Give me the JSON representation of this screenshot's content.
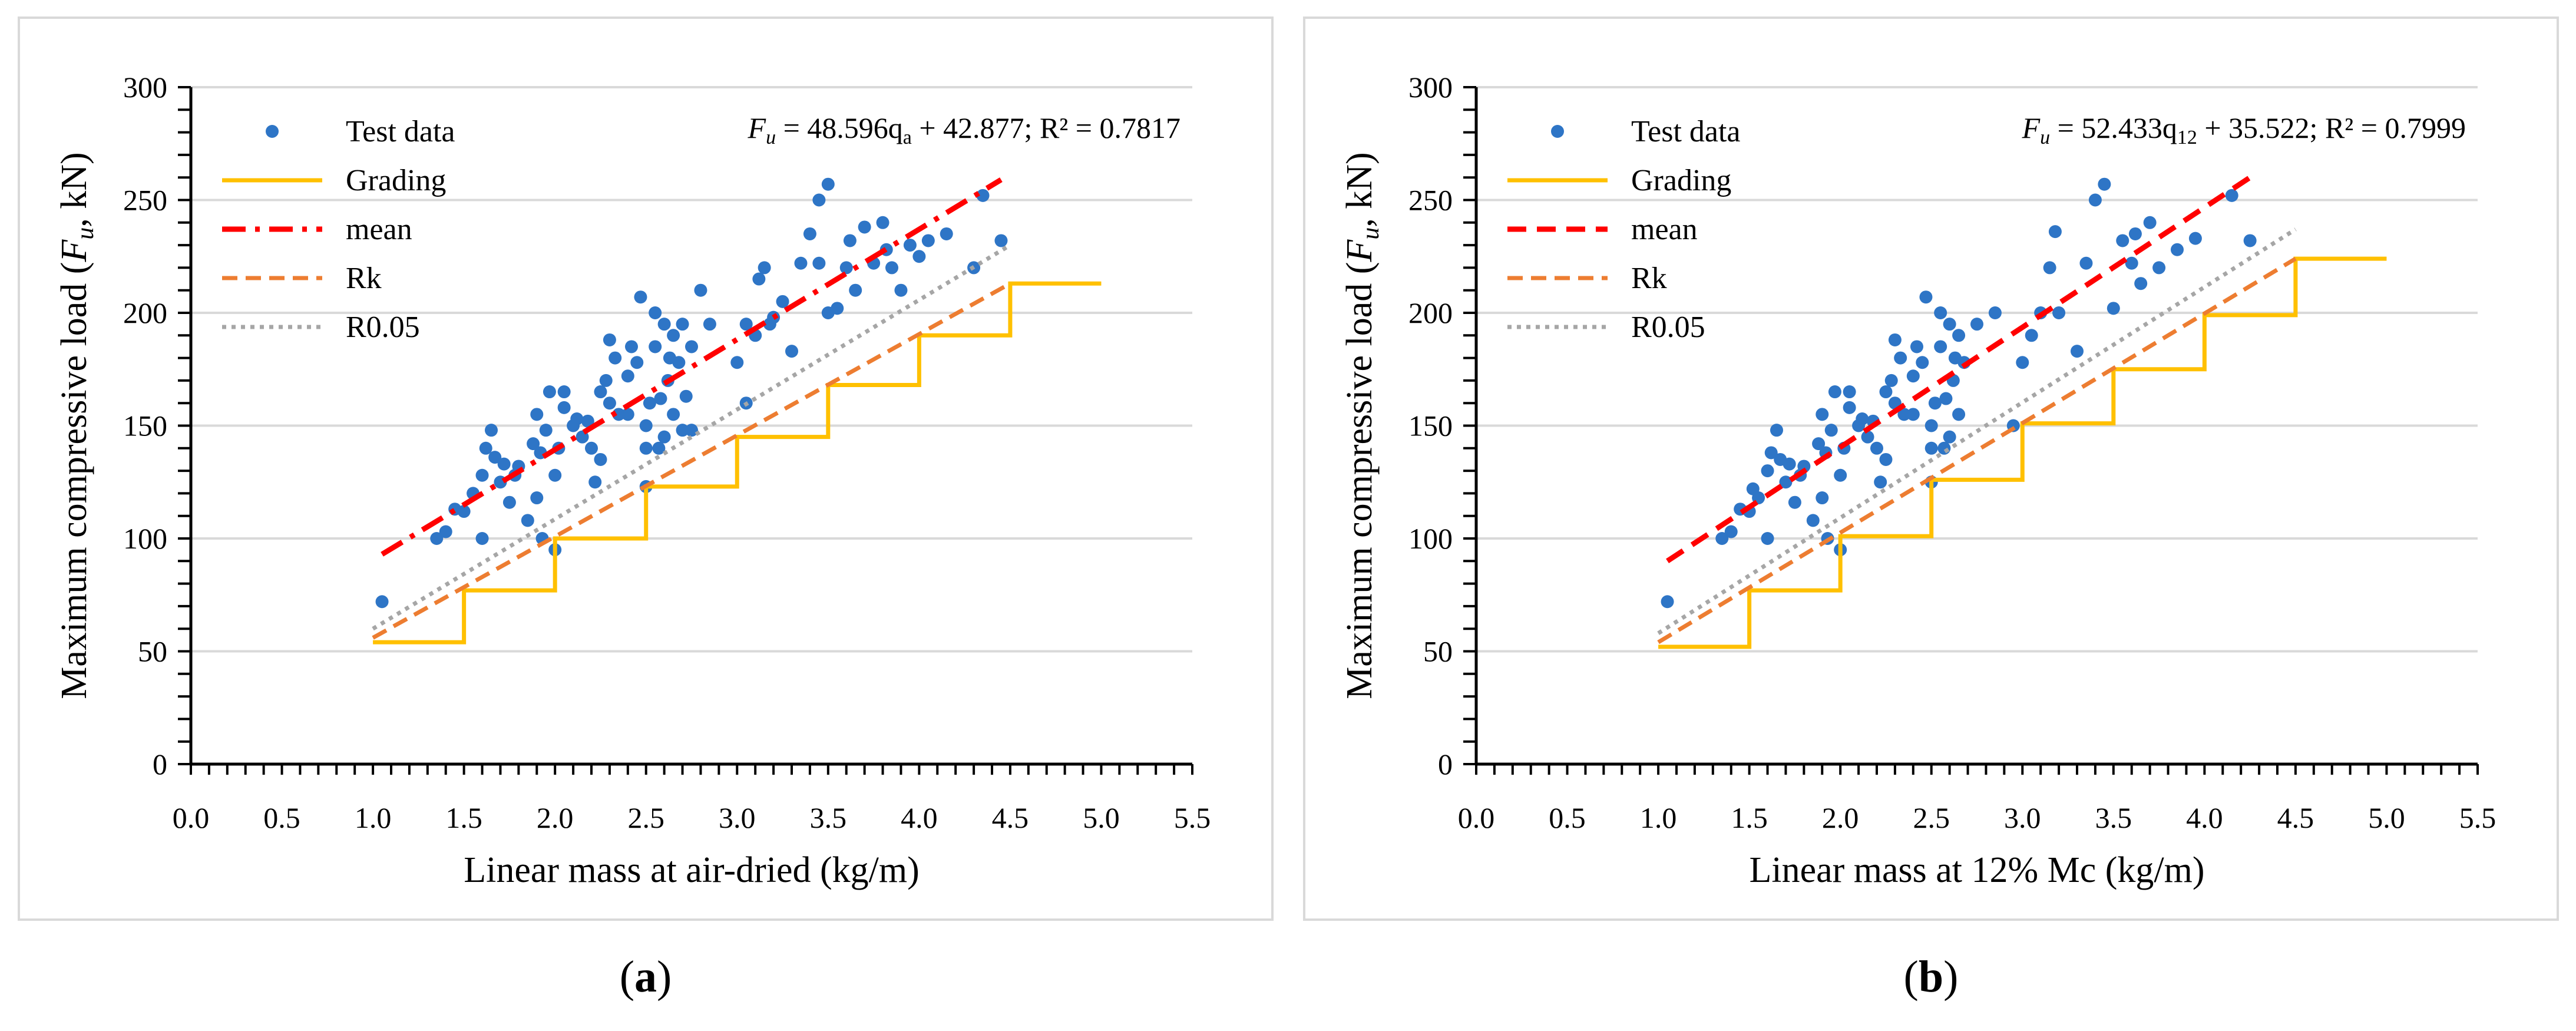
{
  "colors": {
    "test_data": "#2E75C6",
    "grading": "#FFC000",
    "mean": "#FF0000",
    "rk": "#ED7D31",
    "r005": "#A6A6A6",
    "grid": "#D9D9D9",
    "axis": "#000000"
  },
  "captions": {
    "a": "a",
    "b": "b"
  },
  "chart_data": [
    {
      "id": "a",
      "type": "scatter",
      "title": "",
      "xlabel": "Linear mass at air-dried (kg/m)",
      "ylabel_prefix": "Maximum compressive load (",
      "ylabel_var": "F",
      "ylabel_sub": "u",
      "ylabel_suffix": ", kN)",
      "xlim": [
        0,
        5.5
      ],
      "ylim": [
        0,
        300
      ],
      "xticks": [
        "0.0",
        "0.5",
        "1.0",
        "1.5",
        "2.0",
        "2.5",
        "3.0",
        "3.5",
        "4.0",
        "4.5",
        "5.0",
        "5.5"
      ],
      "yticks": [
        "0",
        "50",
        "100",
        "150",
        "200",
        "250",
        "300"
      ],
      "equation": {
        "var": "F",
        "sub": "u",
        "rest": " = 48.596q",
        "qsub": "a",
        "tail": " + 42.877; R² = 0.7817"
      },
      "legend": [
        "Test data",
        "Grading",
        "mean",
        "Rk",
        "R0.05"
      ],
      "mean_style": "dashdot",
      "series": [
        {
          "name": "Test data",
          "type": "scatter",
          "points": [
            [
              1.05,
              72
            ],
            [
              1.35,
              100
            ],
            [
              1.4,
              103
            ],
            [
              1.45,
              113
            ],
            [
              1.5,
              112
            ],
            [
              1.55,
              120
            ],
            [
              1.6,
              100
            ],
            [
              1.6,
              128
            ],
            [
              1.62,
              140
            ],
            [
              1.65,
              148
            ],
            [
              1.67,
              136
            ],
            [
              1.7,
              125
            ],
            [
              1.72,
              133
            ],
            [
              1.75,
              116
            ],
            [
              1.78,
              128
            ],
            [
              1.8,
              132
            ],
            [
              1.85,
              108
            ],
            [
              1.88,
              142
            ],
            [
              1.9,
              155
            ],
            [
              1.9,
              118
            ],
            [
              1.92,
              138
            ],
            [
              1.93,
              100
            ],
            [
              1.95,
              148
            ],
            [
              1.97,
              165
            ],
            [
              2.0,
              95
            ],
            [
              2.0,
              128
            ],
            [
              2.02,
              140
            ],
            [
              2.05,
              158
            ],
            [
              2.05,
              165
            ],
            [
              2.1,
              150
            ],
            [
              2.12,
              153
            ],
            [
              2.15,
              145
            ],
            [
              2.18,
              152
            ],
            [
              2.2,
              140
            ],
            [
              2.22,
              125
            ],
            [
              2.25,
              165
            ],
            [
              2.25,
              135
            ],
            [
              2.28,
              170
            ],
            [
              2.3,
              160
            ],
            [
              2.3,
              188
            ],
            [
              2.33,
              180
            ],
            [
              2.35,
              155
            ],
            [
              2.4,
              155
            ],
            [
              2.4,
              172
            ],
            [
              2.42,
              185
            ],
            [
              2.45,
              178
            ],
            [
              2.47,
              207
            ],
            [
              2.5,
              123
            ],
            [
              2.5,
              140
            ],
            [
              2.5,
              150
            ],
            [
              2.52,
              160
            ],
            [
              2.55,
              185
            ],
            [
              2.55,
              200
            ],
            [
              2.57,
              140
            ],
            [
              2.58,
              162
            ],
            [
              2.6,
              195
            ],
            [
              2.6,
              145
            ],
            [
              2.62,
              170
            ],
            [
              2.63,
              180
            ],
            [
              2.65,
              190
            ],
            [
              2.65,
              155
            ],
            [
              2.68,
              178
            ],
            [
              2.7,
              148
            ],
            [
              2.7,
              195
            ],
            [
              2.72,
              163
            ],
            [
              2.75,
              185
            ],
            [
              2.75,
              148
            ],
            [
              2.8,
              210
            ],
            [
              2.85,
              195
            ],
            [
              3.0,
              178
            ],
            [
              3.05,
              160
            ],
            [
              3.05,
              195
            ],
            [
              3.1,
              190
            ],
            [
              3.12,
              215
            ],
            [
              3.15,
              220
            ],
            [
              3.18,
              195
            ],
            [
              3.2,
              198
            ],
            [
              3.25,
              205
            ],
            [
              3.3,
              183
            ],
            [
              3.35,
              222
            ],
            [
              3.4,
              235
            ],
            [
              3.45,
              222
            ],
            [
              3.45,
              250
            ],
            [
              3.5,
              257
            ],
            [
              3.5,
              200
            ],
            [
              3.55,
              202
            ],
            [
              3.6,
              220
            ],
            [
              3.62,
              232
            ],
            [
              3.65,
              210
            ],
            [
              3.7,
              238
            ],
            [
              3.75,
              222
            ],
            [
              3.8,
              240
            ],
            [
              3.82,
              228
            ],
            [
              3.85,
              220
            ],
            [
              3.9,
              210
            ],
            [
              3.95,
              230
            ],
            [
              4.0,
              225
            ],
            [
              4.05,
              232
            ],
            [
              4.15,
              235
            ],
            [
              4.3,
              220
            ],
            [
              4.35,
              252
            ],
            [
              4.45,
              232
            ]
          ]
        },
        {
          "name": "Grading",
          "type": "step",
          "points": [
            [
              1.0,
              54
            ],
            [
              1.5,
              54
            ],
            [
              1.5,
              77
            ],
            [
              2.0,
              77
            ],
            [
              2.0,
              100
            ],
            [
              2.5,
              100
            ],
            [
              2.5,
              123
            ],
            [
              3.0,
              123
            ],
            [
              3.0,
              145
            ],
            [
              3.5,
              145
            ],
            [
              3.5,
              168
            ],
            [
              4.0,
              168
            ],
            [
              4.0,
              190
            ],
            [
              4.5,
              190
            ],
            [
              4.5,
              213
            ],
            [
              5.0,
              213
            ]
          ]
        },
        {
          "name": "mean",
          "type": "line",
          "points": [
            [
              1.05,
              93
            ],
            [
              4.45,
              259
            ]
          ]
        },
        {
          "name": "Rk",
          "type": "line",
          "points": [
            [
              1.0,
              56
            ],
            [
              4.5,
              213
            ]
          ]
        },
        {
          "name": "R0.05",
          "type": "line",
          "points": [
            [
              1.0,
              60
            ],
            [
              4.5,
              230
            ]
          ]
        }
      ]
    },
    {
      "id": "b",
      "type": "scatter",
      "title": "",
      "xlabel": "Linear mass at 12% Mc (kg/m)",
      "ylabel_prefix": "Maximum compressive load (",
      "ylabel_var": "F",
      "ylabel_sub": "u",
      "ylabel_suffix": ", kN)",
      "xlim": [
        0,
        5.5
      ],
      "ylim": [
        0,
        300
      ],
      "xticks": [
        "0.0",
        "0.5",
        "1.0",
        "1.5",
        "2.0",
        "2.5",
        "3.0",
        "3.5",
        "4.0",
        "4.5",
        "5.0",
        "5.5"
      ],
      "yticks": [
        "0",
        "50",
        "100",
        "150",
        "200",
        "250",
        "300"
      ],
      "equation": {
        "var": "F",
        "sub": "u",
        "rest": " = 52.433q",
        "qsub": "12",
        "tail": " + 35.522; R² = 0.7999"
      },
      "legend": [
        "Test data",
        "Grading",
        "mean",
        "Rk",
        "R0.05"
      ],
      "mean_style": "dash",
      "series": [
        {
          "name": "Test data",
          "type": "scatter",
          "points": [
            [
              1.05,
              72
            ],
            [
              1.35,
              100
            ],
            [
              1.4,
              103
            ],
            [
              1.45,
              113
            ],
            [
              1.5,
              112
            ],
            [
              1.52,
              122
            ],
            [
              1.55,
              118
            ],
            [
              1.6,
              100
            ],
            [
              1.6,
              130
            ],
            [
              1.62,
              138
            ],
            [
              1.65,
              148
            ],
            [
              1.67,
              135
            ],
            [
              1.7,
              125
            ],
            [
              1.72,
              133
            ],
            [
              1.75,
              116
            ],
            [
              1.78,
              128
            ],
            [
              1.8,
              132
            ],
            [
              1.85,
              108
            ],
            [
              1.88,
              142
            ],
            [
              1.9,
              155
            ],
            [
              1.9,
              118
            ],
            [
              1.92,
              138
            ],
            [
              1.93,
              100
            ],
            [
              1.95,
              148
            ],
            [
              1.97,
              165
            ],
            [
              2.0,
              95
            ],
            [
              2.0,
              128
            ],
            [
              2.02,
              140
            ],
            [
              2.05,
              158
            ],
            [
              2.05,
              165
            ],
            [
              2.1,
              150
            ],
            [
              2.12,
              153
            ],
            [
              2.15,
              145
            ],
            [
              2.18,
              152
            ],
            [
              2.2,
              140
            ],
            [
              2.22,
              125
            ],
            [
              2.25,
              165
            ],
            [
              2.25,
              135
            ],
            [
              2.28,
              170
            ],
            [
              2.3,
              160
            ],
            [
              2.3,
              188
            ],
            [
              2.33,
              180
            ],
            [
              2.35,
              155
            ],
            [
              2.4,
              155
            ],
            [
              2.4,
              172
            ],
            [
              2.42,
              185
            ],
            [
              2.45,
              178
            ],
            [
              2.47,
              207
            ],
            [
              2.5,
              125
            ],
            [
              2.5,
              140
            ],
            [
              2.5,
              150
            ],
            [
              2.52,
              160
            ],
            [
              2.55,
              185
            ],
            [
              2.55,
              200
            ],
            [
              2.57,
              140
            ],
            [
              2.58,
              162
            ],
            [
              2.6,
              195
            ],
            [
              2.6,
              145
            ],
            [
              2.62,
              170
            ],
            [
              2.63,
              180
            ],
            [
              2.65,
              190
            ],
            [
              2.65,
              155
            ],
            [
              2.68,
              178
            ],
            [
              2.75,
              195
            ],
            [
              2.85,
              200
            ],
            [
              2.95,
              150
            ],
            [
              3.0,
              178
            ],
            [
              3.05,
              190
            ],
            [
              3.1,
              200
            ],
            [
              3.15,
              220
            ],
            [
              3.18,
              236
            ],
            [
              3.2,
              200
            ],
            [
              3.3,
              183
            ],
            [
              3.35,
              222
            ],
            [
              3.4,
              250
            ],
            [
              3.45,
              257
            ],
            [
              3.5,
              202
            ],
            [
              3.55,
              232
            ],
            [
              3.6,
              222
            ],
            [
              3.62,
              235
            ],
            [
              3.65,
              213
            ],
            [
              3.7,
              240
            ],
            [
              3.75,
              220
            ],
            [
              3.85,
              228
            ],
            [
              3.95,
              233
            ],
            [
              4.15,
              252
            ],
            [
              4.25,
              232
            ]
          ]
        },
        {
          "name": "Grading",
          "type": "step",
          "points": [
            [
              1.0,
              52
            ],
            [
              1.5,
              52
            ],
            [
              1.5,
              77
            ],
            [
              2.0,
              77
            ],
            [
              2.0,
              101
            ],
            [
              2.5,
              101
            ],
            [
              2.5,
              126
            ],
            [
              3.0,
              126
            ],
            [
              3.0,
              151
            ],
            [
              3.5,
              151
            ],
            [
              3.5,
              175
            ],
            [
              4.0,
              175
            ],
            [
              4.0,
              199
            ],
            [
              4.5,
              199
            ],
            [
              4.5,
              224
            ],
            [
              5.0,
              224
            ]
          ]
        },
        {
          "name": "mean",
          "type": "line",
          "points": [
            [
              1.05,
              90
            ],
            [
              4.25,
              260
            ]
          ]
        },
        {
          "name": "Rk",
          "type": "line",
          "points": [
            [
              1.0,
              54
            ],
            [
              4.5,
              224
            ]
          ]
        },
        {
          "name": "R0.05",
          "type": "line",
          "points": [
            [
              1.0,
              58
            ],
            [
              4.5,
              237
            ]
          ]
        }
      ]
    }
  ]
}
